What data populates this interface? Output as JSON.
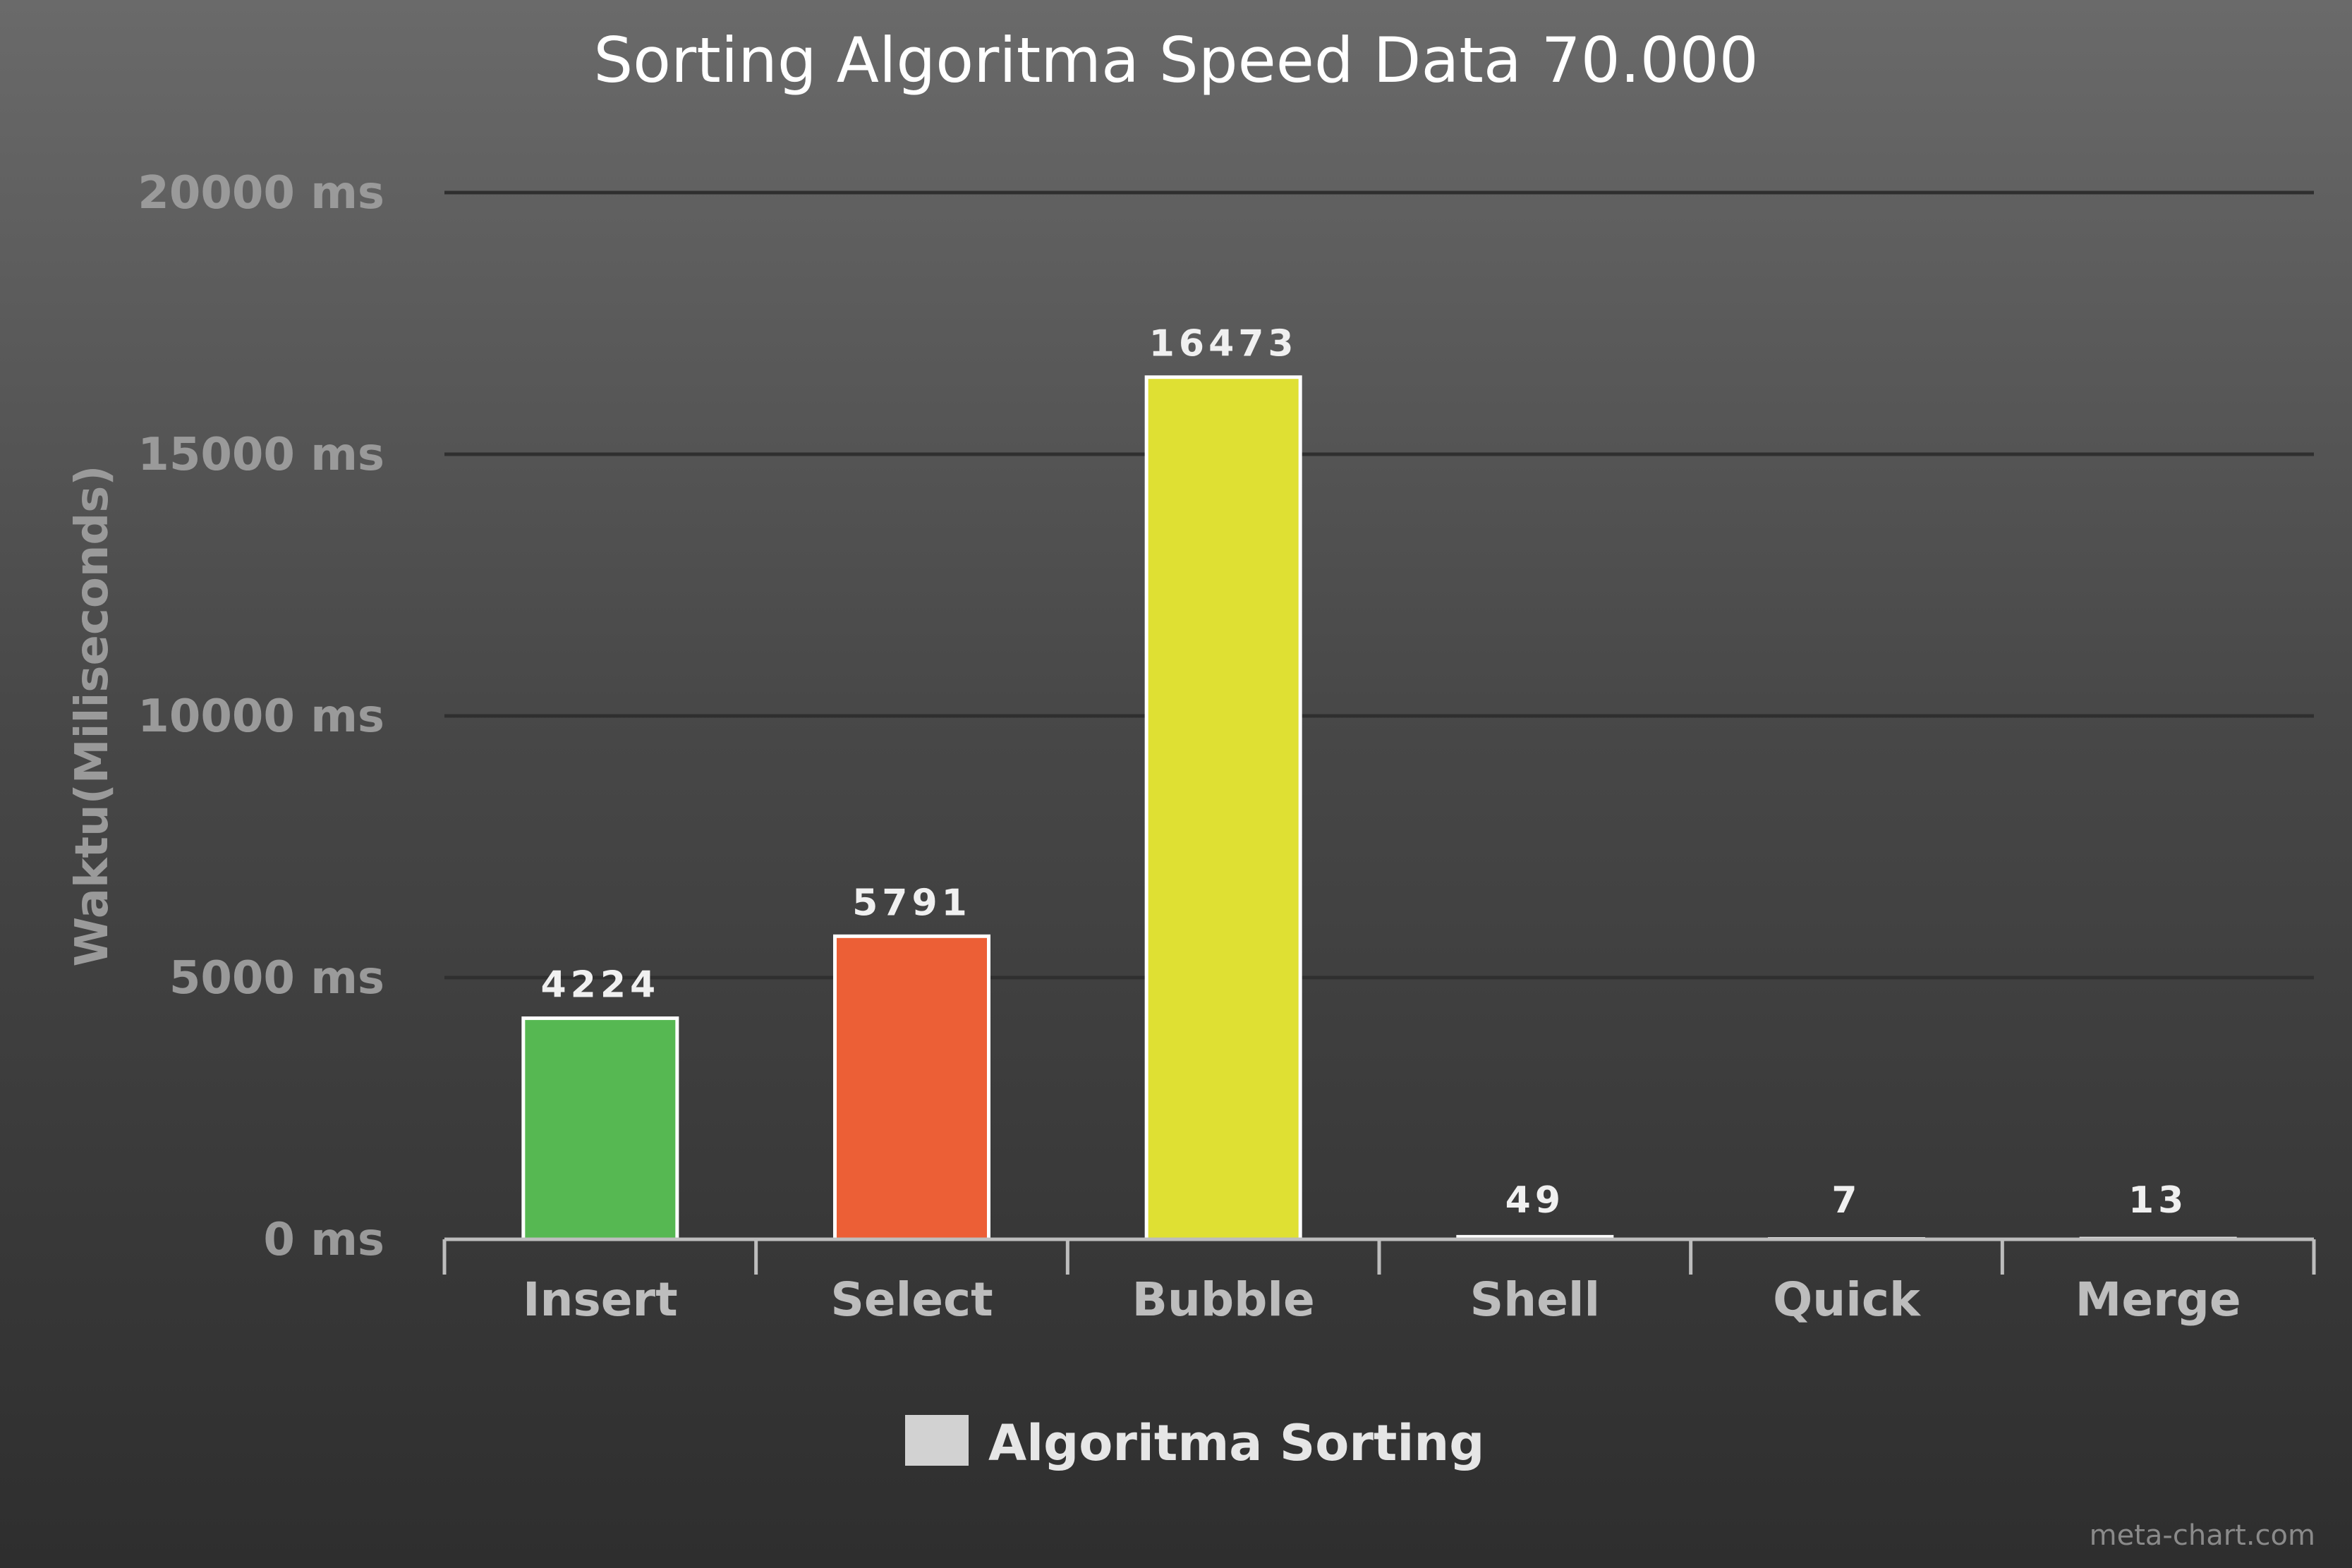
{
  "chart_data": {
    "type": "bar",
    "title": "Sorting Algoritma Speed Data 70.000",
    "xlabel": "",
    "ylabel": "Waktu(Miliseconds)",
    "categories": [
      "Insert",
      "Select",
      "Bubble",
      "Shell",
      "Quick",
      "Merge"
    ],
    "series": [
      {
        "name": "Algoritma Sorting",
        "values": [
          4224,
          5791,
          16473,
          49,
          7,
          13
        ],
        "data_labels": [
          "4224",
          "5791",
          "16473",
          "49",
          "7",
          "13"
        ]
      }
    ],
    "bar_colors": [
      "#56b852",
      "#ec5f36",
      "#dfe033",
      "#ffffff",
      "#ffffff",
      "#ffffff"
    ],
    "legend_color": "#d2d2d2",
    "ylim": [
      0,
      20000
    ],
    "yticks": [
      0,
      5000,
      10000,
      15000,
      20000
    ],
    "ytick_labels": [
      "0 ms",
      "5000 ms",
      "10000 ms",
      "15000 ms",
      "20000 ms"
    ],
    "grid": true,
    "legend_position": "bottom-center"
  },
  "watermark": "meta-chart.com"
}
